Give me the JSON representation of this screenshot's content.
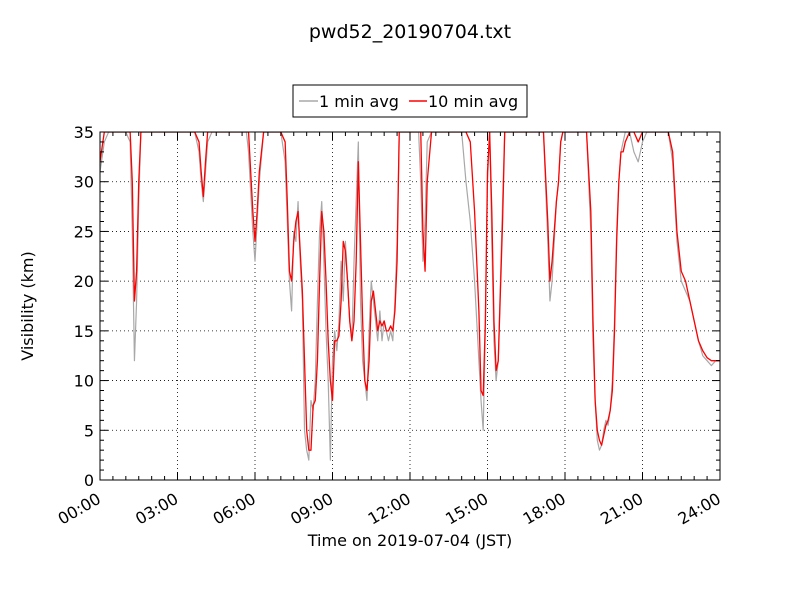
{
  "chart_data": {
    "type": "line",
    "title": "pwd52_20190704.txt",
    "xlabel": "Time on 2019-07-04 (JST)",
    "ylabel": "Visibility (km)",
    "xlim": [
      "00:00",
      "24:00"
    ],
    "ylim": [
      0,
      35
    ],
    "x_ticks": [
      "00:00",
      "03:00",
      "06:00",
      "09:00",
      "12:00",
      "15:00",
      "18:00",
      "21:00",
      "24:00"
    ],
    "y_ticks": [
      "0",
      "5",
      "10",
      "15",
      "20",
      "25",
      "30",
      "35"
    ],
    "grid": true,
    "legend_position": "top-center",
    "series": [
      {
        "name": "1 min avg",
        "color": "#a8a8a8",
        "x": [
          "00:00",
          "00:10",
          "00:20",
          "00:30",
          "00:50",
          "01:00",
          "01:10",
          "01:15",
          "01:20",
          "01:25",
          "01:30",
          "01:35",
          "01:40",
          "01:50",
          "02:00",
          "02:10",
          "02:20",
          "02:30",
          "02:40",
          "02:50",
          "03:00",
          "03:20",
          "03:40",
          "03:50",
          "03:55",
          "04:00",
          "04:05",
          "04:10",
          "04:20",
          "04:40",
          "05:00",
          "05:30",
          "05:40",
          "05:45",
          "05:50",
          "05:55",
          "06:00",
          "06:05",
          "06:10",
          "06:20",
          "06:30",
          "06:50",
          "07:00",
          "07:10",
          "07:15",
          "07:20",
          "07:25",
          "07:30",
          "07:35",
          "07:40",
          "07:45",
          "07:50",
          "07:55",
          "08:00",
          "08:05",
          "08:10",
          "08:15",
          "08:20",
          "08:25",
          "08:30",
          "08:35",
          "08:40",
          "08:45",
          "08:50",
          "08:55",
          "09:00",
          "09:05",
          "09:10",
          "09:15",
          "09:20",
          "09:25",
          "09:30",
          "09:35",
          "09:40",
          "09:45",
          "09:50",
          "09:55",
          "10:00",
          "10:05",
          "10:10",
          "10:15",
          "10:20",
          "10:25",
          "10:30",
          "10:35",
          "10:40",
          "10:45",
          "10:50",
          "10:55",
          "11:00",
          "11:05",
          "11:10",
          "11:15",
          "11:20",
          "11:25",
          "11:30",
          "11:35",
          "11:40",
          "11:45",
          "11:50",
          "11:55",
          "12:00",
          "12:10",
          "12:20",
          "12:25",
          "12:30",
          "12:35",
          "12:40",
          "12:50",
          "13:00",
          "13:30",
          "14:00",
          "14:10",
          "14:20",
          "14:30",
          "14:35",
          "14:40",
          "14:45",
          "14:50",
          "14:55",
          "15:00",
          "15:05",
          "15:10",
          "15:15",
          "15:20",
          "15:25",
          "15:30",
          "15:35",
          "15:40",
          "15:50",
          "16:00",
          "16:30",
          "17:00",
          "17:10",
          "17:20",
          "17:25",
          "17:30",
          "17:35",
          "17:40",
          "17:45",
          "17:50",
          "17:55",
          "18:00",
          "18:10",
          "18:20",
          "18:30",
          "18:40",
          "18:50",
          "19:00",
          "19:05",
          "19:10",
          "19:15",
          "19:20",
          "19:25",
          "19:30",
          "19:35",
          "19:40",
          "19:45",
          "19:50",
          "19:55",
          "20:00",
          "20:05",
          "20:10",
          "20:15",
          "20:20",
          "20:30",
          "20:40",
          "20:50",
          "21:00",
          "21:10",
          "21:20",
          "21:30",
          "21:40",
          "22:00",
          "22:10",
          "22:20",
          "22:30",
          "22:40",
          "22:50",
          "23:00",
          "23:10",
          "23:20",
          "23:30",
          "23:40",
          "23:50",
          "24:00"
        ],
        "values": [
          31,
          34,
          35,
          35,
          35,
          35,
          34,
          25,
          12,
          18,
          28,
          35,
          35,
          35,
          35,
          35,
          35,
          35,
          35,
          35,
          35,
          35,
          35,
          33,
          30,
          28,
          31,
          34,
          35,
          35,
          35,
          35,
          35,
          33,
          29,
          25,
          22,
          26,
          30,
          35,
          35,
          35,
          35,
          32,
          26,
          20,
          17,
          25,
          24,
          28,
          22,
          18,
          5,
          3,
          2,
          8,
          7,
          10,
          18,
          25,
          28,
          22,
          15,
          10,
          2,
          12,
          15,
          13,
          16,
          22,
          18,
          24,
          20,
          16,
          14,
          22,
          28,
          34,
          18,
          12,
          10,
          8,
          15,
          20,
          18,
          16,
          14,
          17,
          14,
          16,
          15,
          14,
          15,
          14,
          18,
          24,
          35,
          35,
          35,
          35,
          35,
          35,
          35,
          35,
          30,
          22,
          26,
          34,
          35,
          35,
          35,
          35,
          30,
          26,
          20,
          16,
          12,
          8,
          5,
          15,
          30,
          35,
          24,
          14,
          10,
          12,
          20,
          28,
          35,
          35,
          35,
          35,
          35,
          35,
          24,
          18,
          20,
          24,
          28,
          30,
          34,
          35,
          35,
          35,
          35,
          35,
          35,
          35,
          25,
          14,
          8,
          4,
          3,
          3.5,
          5,
          6,
          5.5,
          7,
          10,
          16,
          25,
          30,
          33,
          34,
          35,
          35,
          33,
          32,
          34,
          35,
          35,
          35,
          35,
          35,
          32,
          24,
          20,
          19,
          18,
          16,
          14,
          12.5,
          12,
          11.5,
          12,
          12
        ]
      },
      {
        "name": "10 min avg",
        "color": "#ff0000",
        "x": [
          "00:00",
          "00:10",
          "00:20",
          "00:30",
          "00:50",
          "01:00",
          "01:10",
          "01:15",
          "01:20",
          "01:25",
          "01:30",
          "01:35",
          "01:40",
          "01:50",
          "02:00",
          "02:10",
          "02:20",
          "02:30",
          "02:40",
          "02:50",
          "03:00",
          "03:20",
          "03:40",
          "03:50",
          "03:55",
          "04:00",
          "04:05",
          "04:10",
          "04:20",
          "04:40",
          "05:00",
          "05:30",
          "05:40",
          "05:45",
          "05:50",
          "05:55",
          "06:00",
          "06:05",
          "06:10",
          "06:20",
          "06:30",
          "06:50",
          "07:00",
          "07:10",
          "07:15",
          "07:20",
          "07:25",
          "07:30",
          "07:35",
          "07:40",
          "07:45",
          "07:50",
          "07:55",
          "08:00",
          "08:05",
          "08:10",
          "08:15",
          "08:20",
          "08:25",
          "08:30",
          "08:35",
          "08:40",
          "08:45",
          "08:50",
          "08:55",
          "09:00",
          "09:05",
          "09:10",
          "09:15",
          "09:20",
          "09:25",
          "09:30",
          "09:35",
          "09:40",
          "09:45",
          "09:50",
          "09:55",
          "10:00",
          "10:05",
          "10:10",
          "10:15",
          "10:20",
          "10:25",
          "10:30",
          "10:35",
          "10:40",
          "10:45",
          "10:50",
          "10:55",
          "11:00",
          "11:05",
          "11:10",
          "11:15",
          "11:20",
          "11:25",
          "11:30",
          "11:35",
          "11:40",
          "11:45",
          "11:50",
          "11:55",
          "12:00",
          "12:10",
          "12:20",
          "12:25",
          "12:30",
          "12:35",
          "12:40",
          "12:50",
          "13:00",
          "13:30",
          "14:00",
          "14:10",
          "14:20",
          "14:30",
          "14:35",
          "14:40",
          "14:45",
          "14:50",
          "14:55",
          "15:00",
          "15:05",
          "15:10",
          "15:15",
          "15:20",
          "15:25",
          "15:30",
          "15:35",
          "15:40",
          "15:50",
          "16:00",
          "16:30",
          "17:00",
          "17:10",
          "17:20",
          "17:25",
          "17:30",
          "17:35",
          "17:40",
          "17:45",
          "17:50",
          "17:55",
          "18:00",
          "18:10",
          "18:20",
          "18:30",
          "18:40",
          "18:50",
          "19:00",
          "19:05",
          "19:10",
          "19:15",
          "19:20",
          "19:25",
          "19:30",
          "19:35",
          "19:40",
          "19:45",
          "19:50",
          "19:55",
          "20:00",
          "20:05",
          "20:10",
          "20:15",
          "20:20",
          "20:30",
          "20:40",
          "20:50",
          "21:00",
          "21:10",
          "21:20",
          "21:30",
          "21:40",
          "22:00",
          "22:10",
          "22:20",
          "22:30",
          "22:40",
          "22:50",
          "23:00",
          "23:10",
          "23:20",
          "23:30",
          "23:40",
          "23:50",
          "24:00"
        ],
        "values": [
          32,
          35,
          35,
          35,
          35,
          35,
          35,
          30,
          18,
          21,
          30,
          35,
          35,
          35,
          35,
          35,
          35,
          35,
          35,
          35,
          35,
          35,
          35,
          34,
          31,
          28.5,
          32,
          35,
          35,
          35,
          35,
          35,
          35,
          35,
          31,
          27,
          24,
          27,
          31,
          35,
          35,
          35,
          35,
          34,
          28,
          21,
          20,
          24,
          26,
          27,
          23,
          19,
          12,
          5,
          3,
          3,
          7.5,
          8,
          12,
          20,
          27,
          25,
          20,
          14,
          10,
          8,
          14,
          14,
          14.5,
          18,
          24,
          23,
          20,
          16,
          14,
          16,
          22,
          32,
          24,
          16,
          10,
          9,
          12,
          18,
          19,
          17,
          15,
          16,
          15.5,
          16,
          15,
          15,
          15.5,
          15,
          17,
          22,
          35,
          35,
          35,
          35,
          35,
          35,
          35,
          35,
          35,
          25,
          21,
          30,
          35,
          35,
          35,
          35,
          35,
          34,
          27,
          22,
          17,
          9,
          8.5,
          16,
          31,
          35,
          27,
          16,
          11,
          12,
          19,
          26,
          35,
          35,
          35,
          35,
          35,
          35,
          26,
          20,
          22,
          25,
          28,
          30,
          34,
          35,
          35,
          35,
          35,
          35,
          35,
          35,
          27,
          16,
          8,
          5,
          4,
          3.5,
          4.5,
          5.5,
          6,
          7,
          9,
          15,
          24,
          30,
          33,
          33,
          34,
          35,
          35,
          34,
          35,
          35,
          35,
          35,
          35,
          35,
          33,
          25,
          21,
          20,
          18,
          16,
          14,
          13,
          12.3,
          12,
          12,
          12
        ]
      }
    ]
  }
}
